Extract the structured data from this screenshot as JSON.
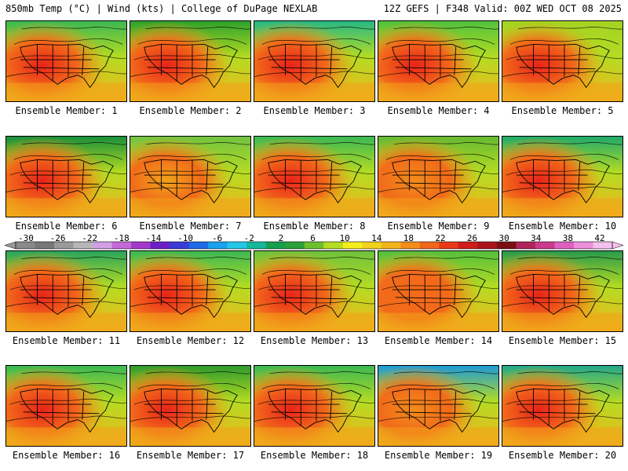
{
  "header": {
    "left": "850mb Temp (°C) | Wind (kts) | College of DuPage NEXLAB",
    "right": "12Z GEFS | F348 Valid: 00Z WED OCT 08 2025"
  },
  "members": [
    {
      "label": "Ensemble Member: 1",
      "west_color": "#e8231a",
      "north_color": "#3cb853"
    },
    {
      "label": "Ensemble Member: 2",
      "west_color": "#e8231a",
      "north_color": "#2ea12c"
    },
    {
      "label": "Ensemble Member: 3",
      "west_color": "#e8231a",
      "north_color": "#26b884"
    },
    {
      "label": "Ensemble Member: 4",
      "west_color": "#e8231a",
      "north_color": "#51c13d"
    },
    {
      "label": "Ensemble Member: 5",
      "west_color": "#e8231a",
      "north_color": "#a3d323"
    },
    {
      "label": "Ensemble Member: 6",
      "west_color": "#e8231a",
      "north_color": "#1a8f3a"
    },
    {
      "label": "Ensemble Member: 7",
      "west_color": "#f2a31a",
      "north_color": "#72c241"
    },
    {
      "label": "Ensemble Member: 8",
      "west_color": "#e8231a",
      "north_color": "#3cb853"
    },
    {
      "label": "Ensemble Member: 9",
      "west_color": "#f28c1a",
      "north_color": "#66b933"
    },
    {
      "label": "Ensemble Member: 10",
      "west_color": "#e8231a",
      "north_color": "#1faa6a"
    },
    {
      "label": "Ensemble Member: 11",
      "west_color": "#e8231a",
      "north_color": "#2aa55d"
    },
    {
      "label": "Ensemble Member: 12",
      "west_color": "#e8231a",
      "north_color": "#3cb853"
    },
    {
      "label": "Ensemble Member: 13",
      "west_color": "#e8231a",
      "north_color": "#6fc13d"
    },
    {
      "label": "Ensemble Member: 14",
      "west_color": "#f26a1a",
      "north_color": "#55bf3d"
    },
    {
      "label": "Ensemble Member: 15",
      "west_color": "#e8231a",
      "north_color": "#2a9a4c"
    },
    {
      "label": "Ensemble Member: 16",
      "west_color": "#e8231a",
      "north_color": "#3cb853"
    },
    {
      "label": "Ensemble Member: 17",
      "west_color": "#e8231a",
      "north_color": "#2e9a2c"
    },
    {
      "label": "Ensemble Member: 18",
      "west_color": "#e8231a",
      "north_color": "#3cb853"
    },
    {
      "label": "Ensemble Member: 19",
      "west_color": "#f28c1a",
      "north_color": "#1f9ad6"
    },
    {
      "label": "Ensemble Member: 20",
      "west_color": "#e8231a",
      "north_color": "#22a88a"
    }
  ],
  "colorbar": {
    "ticks": [
      "-30",
      "-26",
      "-22",
      "-18",
      "-14",
      "-10",
      "-6",
      "-2",
      "2",
      "6",
      "10",
      "14",
      "18",
      "22",
      "26",
      "30",
      "34",
      "38",
      "42"
    ],
    "colors": [
      "#8a8a8a",
      "#777777",
      "#9a9a9a",
      "#b7b7b7",
      "#d2a0e6",
      "#c46ad8",
      "#a43acb",
      "#6c1fc6",
      "#3a3ad6",
      "#1f6ae6",
      "#1aa0f0",
      "#22c8e6",
      "#16b89a",
      "#15a050",
      "#2ca13a",
      "#6ebf2e",
      "#b4dc22",
      "#f4ee1c",
      "#f2d21c",
      "#f2b41c",
      "#f28c1a",
      "#f2661a",
      "#e83a18",
      "#d01c1c",
      "#a8141a",
      "#7a0e12",
      "#b0245a",
      "#cc3a8c",
      "#e060c0",
      "#ec90dc",
      "#f5c0ec"
    ]
  }
}
